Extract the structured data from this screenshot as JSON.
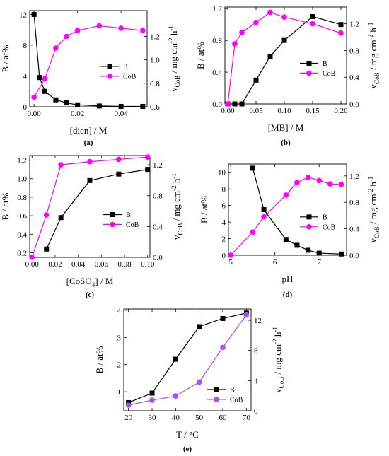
{
  "chart_data": [
    {
      "id": "a",
      "type": "line",
      "panel_label": "(a)",
      "xlabel": "[dien] / M",
      "ylabel_left": "B / at%",
      "ylabel_right": "v_CoB / mg cm^-2 h^-1",
      "xlim": [
        -0.002,
        0.052
      ],
      "ylim_left": [
        0,
        12.5
      ],
      "ylim_right": [
        0.6,
        1.42
      ],
      "xticks": [
        0,
        0.02,
        0.04
      ],
      "xtick_labels": [
        "0.00",
        "0.02",
        "0.04"
      ],
      "yticks_left": [
        0,
        4,
        8,
        12
      ],
      "ytick_labels_left": [
        "0",
        "4",
        "8",
        "12"
      ],
      "yticks_right": [
        0.6,
        0.8,
        1.0,
        1.2
      ],
      "ytick_labels_right": [
        "0.6",
        "0.8",
        "1.0",
        "1.2"
      ],
      "legend_position": "middle-right",
      "series": [
        {
          "name": "B",
          "axis": "left",
          "marker": "square",
          "color": "#000000",
          "x": [
            0,
            0.0025,
            0.005,
            0.01,
            0.015,
            0.02,
            0.03,
            0.04,
            0.05
          ],
          "y": [
            12,
            3.8,
            2.0,
            0.9,
            0.5,
            0.25,
            0.1,
            0.05,
            0.05
          ]
        },
        {
          "name": "CoB",
          "axis": "right",
          "marker": "circle",
          "color": "#ff00ff",
          "x": [
            0,
            0.005,
            0.01,
            0.015,
            0.02,
            0.03,
            0.04,
            0.05
          ],
          "y": [
            0.68,
            0.84,
            1.1,
            1.2,
            1.25,
            1.29,
            1.27,
            1.25
          ]
        }
      ]
    },
    {
      "id": "b",
      "type": "line",
      "panel_label": "(b)",
      "xlabel": "[MB] / M",
      "ylabel_left": "B / at%",
      "ylabel_right": "v_CoB / mg cm^-2 h^-1",
      "xlim": [
        -0.005,
        0.21
      ],
      "ylim_left": [
        0,
        1.22
      ],
      "ylim_right": [
        0,
        1.45
      ],
      "xticks": [
        0,
        0.05,
        0.1,
        0.15,
        0.2
      ],
      "xtick_labels": [
        "0.00",
        "0.05",
        "0.10",
        "0.15",
        "0.20"
      ],
      "yticks_left": [
        0,
        0.4,
        0.8,
        1.2
      ],
      "ytick_labels_left": [
        "0.0",
        "0.4",
        "0.8",
        "1.2"
      ],
      "yticks_right": [
        0,
        0.4,
        0.8,
        1.2
      ],
      "ytick_labels_right": [
        "0.0",
        "0.4",
        "0.8",
        "1.2"
      ],
      "legend_position": "middle-right",
      "series": [
        {
          "name": "B",
          "axis": "left",
          "marker": "square",
          "color": "#000000",
          "x": [
            0,
            0.0125,
            0.025,
            0.05,
            0.075,
            0.1,
            0.15,
            0.2
          ],
          "y": [
            0,
            0,
            0,
            0.3,
            0.6,
            0.8,
            1.1,
            1.0
          ]
        },
        {
          "name": "CoB",
          "axis": "right",
          "marker": "circle",
          "color": "#ff00ff",
          "x": [
            0,
            0.0125,
            0.025,
            0.05,
            0.075,
            0.1,
            0.15,
            0.2
          ],
          "y": [
            0,
            0.9,
            1.07,
            1.22,
            1.37,
            1.3,
            1.2,
            1.06
          ]
        }
      ]
    },
    {
      "id": "c",
      "type": "line",
      "panel_label": "(c)",
      "xlabel": "[CoSO4] / M",
      "ylabel_left": "B / at%",
      "ylabel_right": "v_CoB / mg cm^-2 h^-1",
      "xlim": [
        -0.002,
        0.102
      ],
      "ylim_left": [
        0.15,
        1.25
      ],
      "ylim_right": [
        0,
        1.32
      ],
      "xticks": [
        0,
        0.02,
        0.04,
        0.06,
        0.08,
        0.1
      ],
      "xtick_labels": [
        "0.00",
        "0.02",
        "0.04",
        "0.06",
        "0.08",
        "0.10"
      ],
      "yticks_left": [
        0.2,
        0.4,
        0.6,
        0.8,
        1.0,
        1.2
      ],
      "ytick_labels_left": [
        "0.2",
        "0.4",
        "0.6",
        "0.8",
        "1.0",
        "1.2"
      ],
      "yticks_right": [
        0,
        0.4,
        0.8,
        1.2
      ],
      "ytick_labels_right": [
        "0.0",
        "0.4",
        "0.8",
        "1.2"
      ],
      "legend_position": "middle-right",
      "series": [
        {
          "name": "B",
          "axis": "left",
          "marker": "square",
          "color": "#000000",
          "x": [
            0.0125,
            0.025,
            0.05,
            0.075,
            0.1
          ],
          "y": [
            0.24,
            0.58,
            0.98,
            1.05,
            1.1
          ]
        },
        {
          "name": "CoB",
          "axis": "right",
          "marker": "circle",
          "color": "#ff00ff",
          "x": [
            0,
            0.0125,
            0.025,
            0.05,
            0.075,
            0.1
          ],
          "y": [
            0,
            0.55,
            1.2,
            1.24,
            1.27,
            1.3
          ]
        }
      ]
    },
    {
      "id": "d",
      "type": "line",
      "panel_label": "(d)",
      "xlabel": "pH",
      "ylabel_left": "B / at%",
      "ylabel_right": "v_CoB / mg cm^-2 h^-1",
      "xlim": [
        4.95,
        7.62
      ],
      "ylim_left": [
        0,
        11
      ],
      "ylim_right": [
        0,
        1.38
      ],
      "xticks": [
        5,
        6,
        7
      ],
      "xtick_labels": [
        "5",
        "6",
        "7"
      ],
      "yticks_left": [
        0,
        2,
        4,
        6,
        8,
        10
      ],
      "ytick_labels_left": [
        "0",
        "2",
        "4",
        "6",
        "8",
        "10"
      ],
      "yticks_right": [
        0,
        0.4,
        0.8,
        1.2
      ],
      "ytick_labels_right": [
        "0.0",
        "0.4",
        "0.8",
        "1.2"
      ],
      "legend_position": "middle-right",
      "series": [
        {
          "name": "B",
          "axis": "left",
          "marker": "square",
          "color": "#000000",
          "x": [
            5.5,
            5.75,
            6.25,
            6.5,
            6.75,
            7.0,
            7.5
          ],
          "y": [
            10.5,
            5.5,
            1.9,
            1.2,
            0.6,
            0.25,
            0.15
          ]
        },
        {
          "name": "CoB",
          "axis": "right",
          "marker": "circle",
          "color": "#ff00ff",
          "x": [
            5.0,
            5.5,
            5.75,
            6.25,
            6.5,
            6.75,
            7.0,
            7.25,
            7.5
          ],
          "y": [
            0,
            0.35,
            0.58,
            0.91,
            1.1,
            1.18,
            1.13,
            1.08,
            1.07
          ]
        }
      ]
    },
    {
      "id": "e",
      "type": "line",
      "panel_label": "(e)",
      "xlabel": "T / °C",
      "ylabel_left": "B / at%",
      "ylabel_right": "v_CoB / mg cm^-2 h^-1",
      "xlim": [
        18,
        72
      ],
      "ylim_left": [
        0.3,
        4.05
      ],
      "ylim_right": [
        0,
        13.5
      ],
      "xticks": [
        20,
        30,
        40,
        50,
        60,
        70
      ],
      "xtick_labels": [
        "20",
        "30",
        "40",
        "50",
        "60",
        "70"
      ],
      "yticks_left": [
        1,
        2,
        3,
        4
      ],
      "ytick_labels_left": [
        "1",
        "2",
        "3",
        "4"
      ],
      "yticks_right": [
        0,
        4,
        8,
        12
      ],
      "ytick_labels_right": [
        "0",
        "4",
        "8",
        "12"
      ],
      "legend_position": "bottom-right",
      "series": [
        {
          "name": "B",
          "axis": "left",
          "marker": "square",
          "color": "#000000",
          "x": [
            20,
            30,
            40,
            50,
            60,
            70
          ],
          "y": [
            0.6,
            0.95,
            2.2,
            3.4,
            3.7,
            3.9
          ]
        },
        {
          "name": "CoB",
          "axis": "right",
          "marker": "circle",
          "color": "#a64dff",
          "x": [
            20,
            30,
            40,
            50,
            60,
            70
          ],
          "y": [
            0.75,
            1.4,
            1.95,
            3.8,
            8.4,
            12.7
          ]
        }
      ]
    }
  ]
}
